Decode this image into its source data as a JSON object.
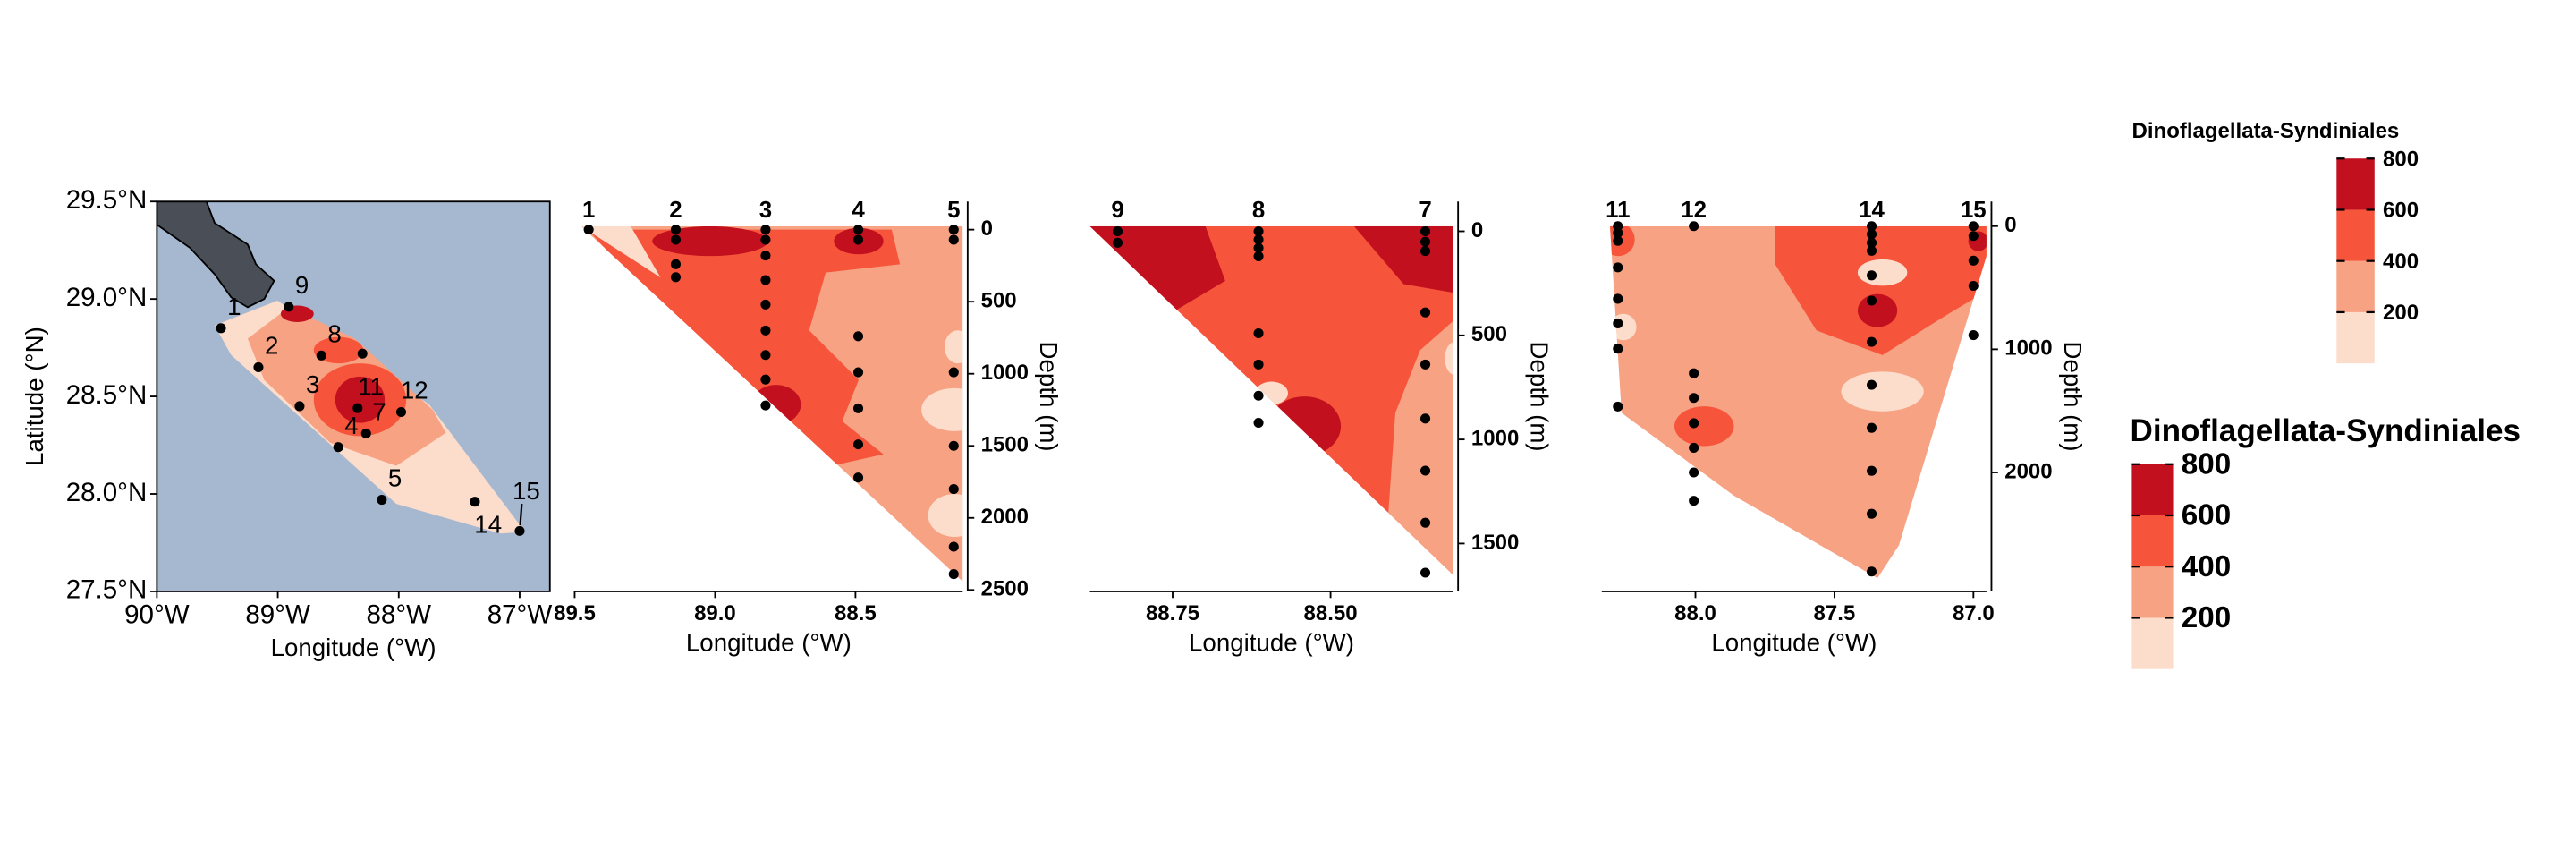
{
  "chart_data": [
    {
      "type": "map",
      "xlabel": "Longitude (°W)",
      "ylabel": "Latitude (°N)",
      "xlim": [
        -90,
        -86.75
      ],
      "ylim": [
        27.5,
        29.5
      ],
      "xticks": [
        {
          "value": -90,
          "label": "90°W"
        },
        {
          "value": -89,
          "label": "89°W"
        },
        {
          "value": -88,
          "label": "88°W"
        },
        {
          "value": -87,
          "label": "87°W"
        }
      ],
      "yticks": [
        {
          "value": 27.5,
          "label": "27.5°N"
        },
        {
          "value": 28,
          "label": "28.0°N"
        },
        {
          "value": 28.5,
          "label": "28.5°N"
        },
        {
          "value": 29,
          "label": "29.0°N"
        },
        {
          "value": 29.5,
          "label": "29.5°N"
        }
      ],
      "labels": [
        "1",
        "2",
        "9",
        "8",
        null,
        "11",
        "7",
        "12",
        "3",
        "4",
        "5",
        "14",
        "15"
      ],
      "x": [
        -89.47,
        -89.16,
        -88.91,
        -88.64,
        -88.3,
        -88.34,
        -88.27,
        -87.98,
        -88.82,
        -88.5,
        -88.14,
        -87.37,
        -87.0
      ],
      "y": [
        28.85,
        28.65,
        28.96,
        28.71,
        28.72,
        28.44,
        28.31,
        28.42,
        28.45,
        28.24,
        27.97,
        27.96,
        27.81
      ]
    },
    {
      "type": "section",
      "xlabel": "Longitude (°W)",
      "ylabel": "Depth (m)",
      "xlim": [
        89.5,
        88.118
      ],
      "ylim": [
        2510,
        -195
      ],
      "xticks": [
        89.5,
        {
          "value": 89,
          "label": "89.0"
        },
        88.5
      ],
      "yticks": [
        0,
        500,
        1000,
        1500,
        2000,
        2500
      ],
      "stations": [
        {
          "label": "1",
          "lon": 89.45,
          "depths": [
            0
          ]
        },
        {
          "label": "2",
          "lon": 89.14,
          "depths": [
            0,
            70,
            240,
            330
          ]
        },
        {
          "label": "3",
          "lon": 88.82,
          "depths": [
            0,
            70,
            180,
            350,
            520,
            700,
            870,
            1040,
            1220
          ]
        },
        {
          "label": "4",
          "lon": 88.49,
          "depths": [
            0,
            70,
            740,
            990,
            1240,
            1490,
            1720
          ]
        },
        {
          "label": "5",
          "lon": 88.15,
          "depths": [
            0,
            70,
            990,
            1500,
            1800,
            2200,
            2390
          ]
        }
      ]
    },
    {
      "type": "section",
      "xlabel": "Longitude (°W)",
      "ylabel": "Depth (m)",
      "xlim": [
        88.881,
        88.306
      ],
      "ylim": [
        1730,
        -143
      ],
      "xticks": [
        88.75,
        {
          "value": 88.5,
          "label": "88.50"
        }
      ],
      "yticks": [
        0,
        500,
        1000,
        1500
      ],
      "stations": [
        {
          "label": "9",
          "lon": 88.837,
          "depths": [
            0,
            55
          ]
        },
        {
          "label": "8",
          "lon": 88.614,
          "depths": [
            0,
            40,
            80,
            120,
            490,
            640,
            790,
            920
          ]
        },
        {
          "label": "7",
          "lon": 88.35,
          "depths": [
            0,
            50,
            95,
            390,
            640,
            900,
            1150,
            1400,
            1640
          ]
        }
      ]
    },
    {
      "type": "section",
      "xlabel": "Longitude (°W)",
      "ylabel": "Depth (m)",
      "xlim": [
        88.337,
        86.953
      ],
      "ylim": [
        2966,
        -200
      ],
      "xticks": [
        {
          "value": 88,
          "label": "88.0"
        },
        87.5,
        {
          "value": 87,
          "label": "87.0"
        }
      ],
      "yticks": [
        0,
        1000,
        2000
      ],
      "stations": [
        {
          "label": "11",
          "lon": 88.279,
          "depths": [
            0,
            55,
            120,
            335,
            590,
            790,
            995,
            1465
          ]
        },
        {
          "label": "12",
          "lon": 88.006,
          "depths": [
            0,
            1195,
            1395,
            1600,
            1800,
            2000,
            2230
          ]
        },
        {
          "label": "14",
          "lon": 87.366,
          "depths": [
            0,
            65,
            135,
            200,
            400,
            605,
            940,
            1289,
            1638,
            1987,
            2336,
            2805
          ]
        },
        {
          "label": "15",
          "lon": 87.0,
          "depths": [
            0,
            80,
            280,
            485,
            885
          ]
        }
      ]
    }
  ],
  "legends": [
    {
      "title": "Dinoflagellata-Syndiniales",
      "breaks": [
        200,
        400,
        600,
        800
      ],
      "colors": [
        "#fcdccb",
        "#f7a283",
        "#f6553c",
        "#c2101f"
      ]
    },
    {
      "title": "Dinoflagellata-Syndiniales",
      "breaks": [
        200,
        400,
        600,
        800
      ],
      "colors": [
        "#fcdccb",
        "#f7a283",
        "#f6553c",
        "#c2101f"
      ]
    }
  ]
}
